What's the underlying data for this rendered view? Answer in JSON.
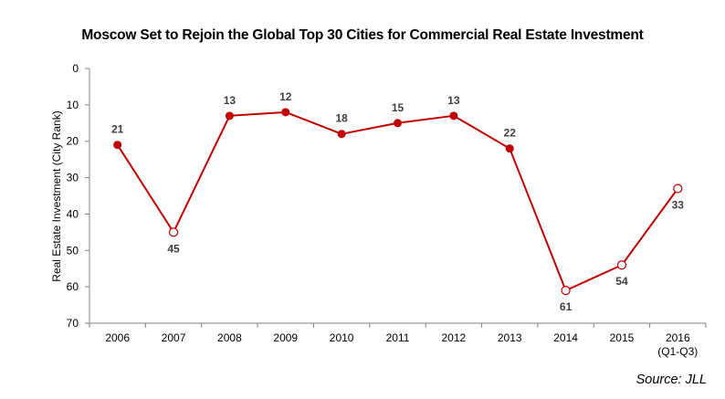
{
  "chart_data": {
    "type": "line",
    "title": "Moscow Set to Rejoin the Global Top 30 Cities for Commercial Real Estate Investment",
    "ylabel": "Real Estate Investment (City Rank)",
    "xlabel": "",
    "ylim": [
      0,
      70
    ],
    "y_inverted": true,
    "y_ticks": [
      "0",
      "10",
      "20",
      "30",
      "40",
      "50",
      "60",
      "70"
    ],
    "grid": false,
    "categories": [
      {
        "line1": "2006",
        "line2": ""
      },
      {
        "line1": "2007",
        "line2": ""
      },
      {
        "line1": "2008",
        "line2": ""
      },
      {
        "line1": "2009",
        "line2": ""
      },
      {
        "line1": "2010",
        "line2": ""
      },
      {
        "line1": "2011",
        "line2": ""
      },
      {
        "line1": "2012",
        "line2": ""
      },
      {
        "line1": "2013",
        "line2": ""
      },
      {
        "line1": "2014",
        "line2": ""
      },
      {
        "line1": "2015",
        "line2": ""
      },
      {
        "line1": "2016",
        "line2": "(Q1-Q3)"
      }
    ],
    "series": [
      {
        "values": [
          21,
          45,
          13,
          12,
          18,
          15,
          13,
          22,
          61,
          54,
          33
        ],
        "value_labels": [
          "21",
          "45",
          "13",
          "12",
          "18",
          "15",
          "13",
          "22",
          "61",
          "54",
          "33"
        ],
        "hollow_markers": [
          false,
          true,
          false,
          false,
          false,
          false,
          false,
          false,
          true,
          true,
          true
        ],
        "label_position": [
          "above",
          "below",
          "above",
          "above",
          "above",
          "above",
          "above",
          "above",
          "below",
          "below",
          "below"
        ],
        "color": "#C00000"
      }
    ]
  },
  "source": "Source: JLL"
}
